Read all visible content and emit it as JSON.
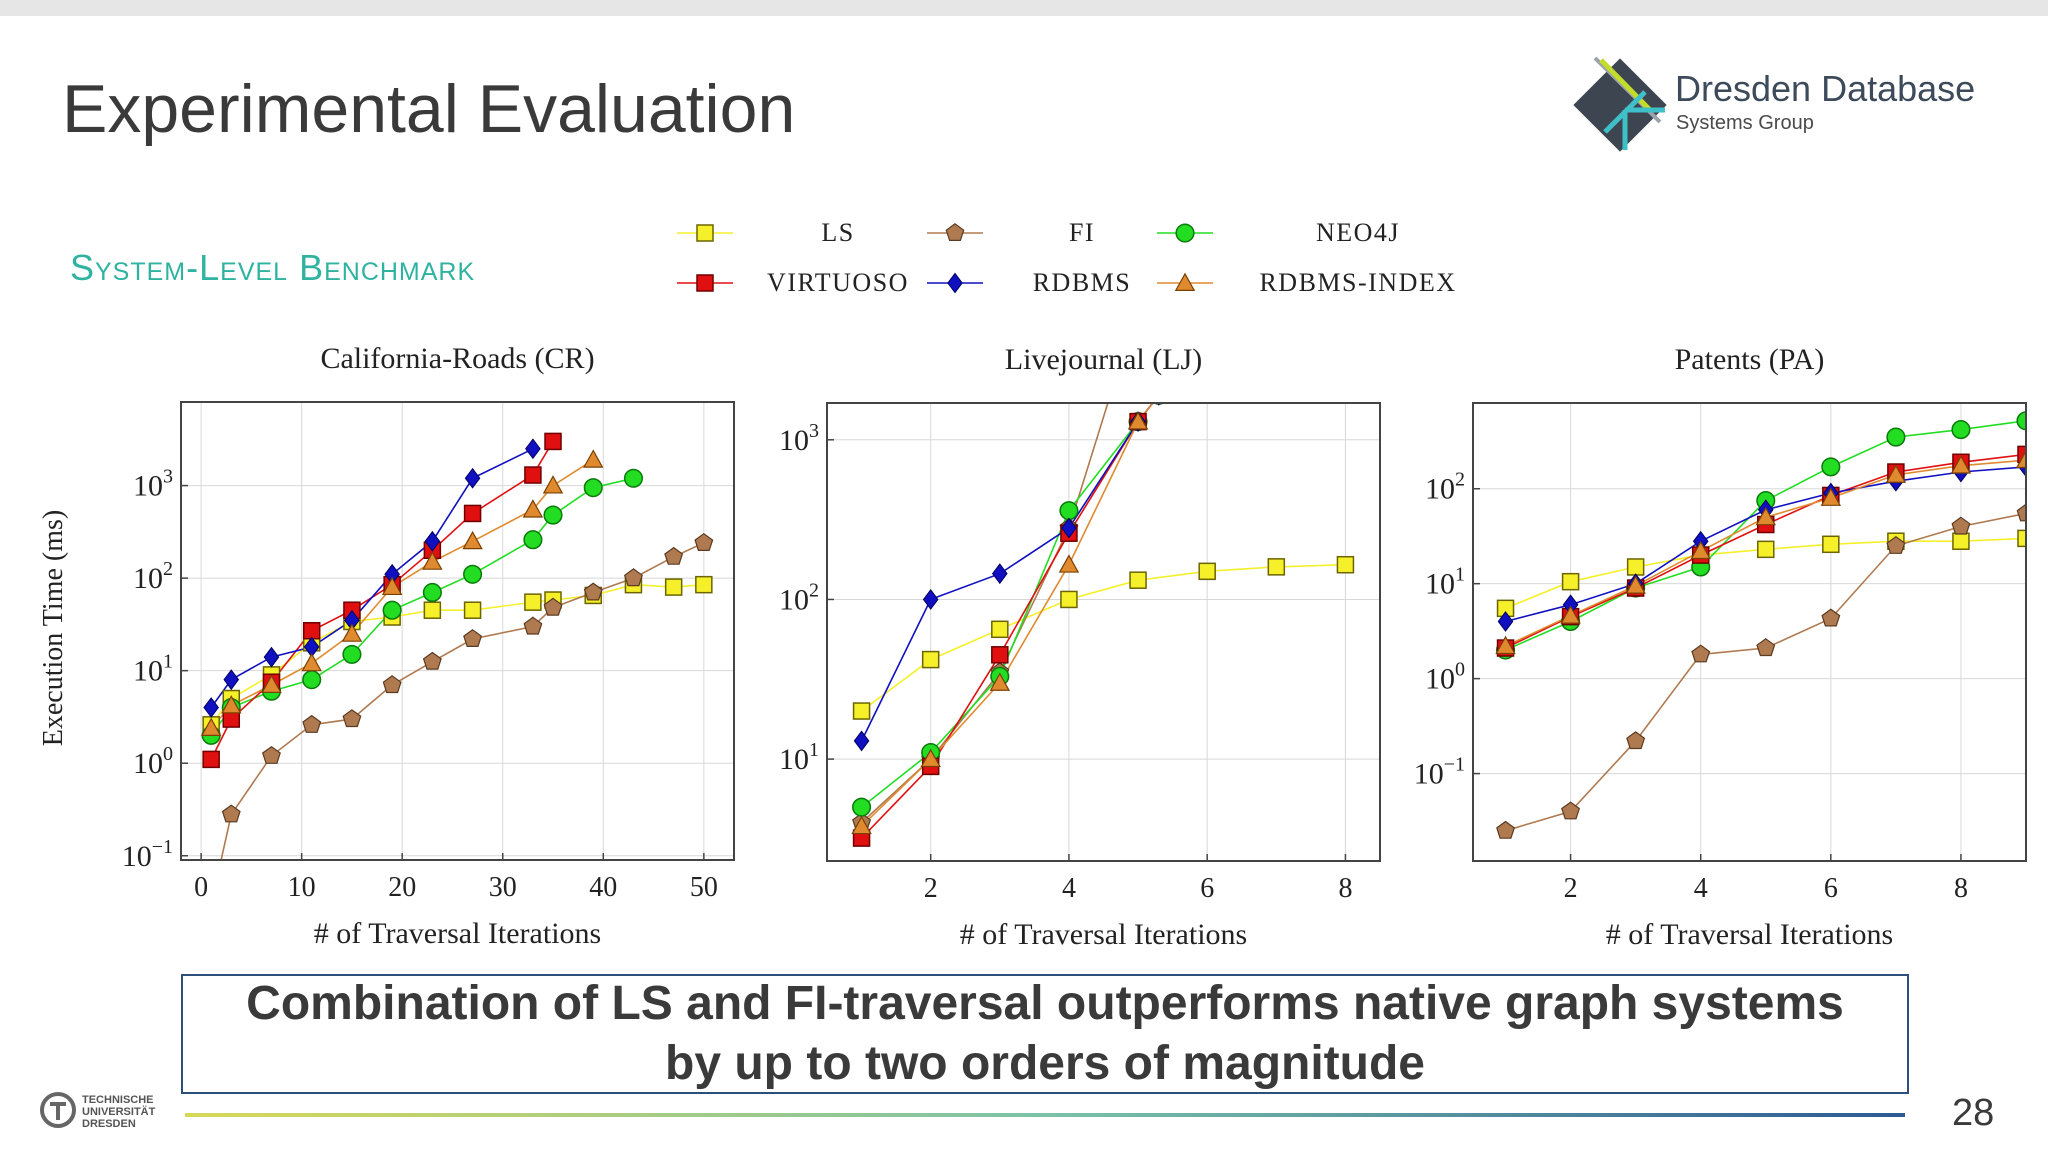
{
  "slide": {
    "title": "Experimental Evaluation",
    "subtitle": "System-Level Benchmark",
    "logo_main": "Dresden Database",
    "logo_sub": "Systems Group",
    "conclusion_line1": "Combination of LS and FI-traversal outperforms native graph systems",
    "conclusion_line2": "by up to two orders of magnitude",
    "page_number": "28",
    "university_line1": "TECHNISCHE",
    "university_line2": "UNIVERSITÄT",
    "university_line3": "DRESDEN"
  },
  "legend": [
    {
      "key": "ls",
      "label": "LS",
      "marker": "square",
      "color": "#f5f02a",
      "stroke": "#6b6400"
    },
    {
      "key": "fi",
      "label": "FI",
      "marker": "pentagon",
      "color": "#b07a50",
      "stroke": "#5a3a20"
    },
    {
      "key": "neo4j",
      "label": "NEO4J",
      "marker": "circle",
      "color": "#22dd22",
      "stroke": "#0a7a0a"
    },
    {
      "key": "virtuoso",
      "label": "VIRTUOSO",
      "marker": "square",
      "color": "#e01010",
      "stroke": "#700000"
    },
    {
      "key": "rdbms",
      "label": "RDBMS",
      "marker": "diamond",
      "color": "#1010c0",
      "stroke": "#000060"
    },
    {
      "key": "rdbms_index",
      "label": "RDBMS-INDEX",
      "marker": "triangle",
      "color": "#e08a30",
      "stroke": "#7a4000"
    }
  ],
  "chart_data": [
    {
      "type": "line",
      "title": "California-Roads (CR)",
      "xlabel": "# of Traversal Iterations",
      "ylabel": "Execution Time (ms)",
      "xlim": [
        -2,
        53
      ],
      "ylim": [
        0.09,
        8000
      ],
      "yscale": "log",
      "xticks": [
        0,
        10,
        20,
        30,
        40,
        50
      ],
      "yticks": [
        0.1,
        1,
        10,
        100,
        1000
      ],
      "ytick_exponents": [
        "−1",
        "0",
        "1",
        "2",
        "3"
      ],
      "grid": true,
      "series": [
        {
          "key": "ls",
          "x": [
            1,
            3,
            7,
            11,
            15,
            19,
            23,
            27,
            33,
            35,
            39,
            43,
            47,
            50
          ],
          "y": [
            2.6,
            5,
            9,
            20,
            34,
            38,
            45,
            45,
            55,
            58,
            65,
            85,
            80,
            85
          ]
        },
        {
          "key": "fi",
          "x": [
            1,
            3,
            7,
            11,
            15,
            19,
            23,
            27,
            33,
            35,
            39,
            43,
            47,
            50
          ],
          "y": [
            0.03,
            0.28,
            1.2,
            2.6,
            3.0,
            7.0,
            12.5,
            22,
            30,
            48,
            70,
            100,
            170,
            240
          ]
        },
        {
          "key": "neo4j",
          "x": [
            1,
            3,
            7,
            11,
            15,
            19,
            23,
            27,
            33,
            35,
            39,
            43
          ],
          "y": [
            2.0,
            4.0,
            6.0,
            8.0,
            15,
            45,
            70,
            110,
            260,
            480,
            950,
            1200
          ]
        },
        {
          "key": "virtuoso",
          "x": [
            1,
            3,
            7,
            11,
            15,
            19,
            23,
            27,
            33,
            35
          ],
          "y": [
            1.1,
            3.0,
            7.5,
            27,
            45,
            85,
            200,
            500,
            1300,
            3000
          ]
        },
        {
          "key": "rdbms",
          "x": [
            1,
            3,
            7,
            11,
            15,
            19,
            23,
            27,
            33
          ],
          "y": [
            4,
            8,
            14,
            18,
            35,
            110,
            250,
            1200,
            2500
          ]
        },
        {
          "key": "rdbms_index",
          "x": [
            1,
            3,
            7,
            11,
            15,
            19,
            23,
            27,
            33,
            35,
            39
          ],
          "y": [
            2.4,
            4.2,
            7,
            12,
            25,
            80,
            150,
            250,
            550,
            1000,
            1900
          ]
        }
      ]
    },
    {
      "type": "line",
      "title": "Livejournal (LJ)",
      "xlabel": "# of Traversal Iterations",
      "ylabel": "",
      "xlim": [
        0.5,
        8.5
      ],
      "ylim": [
        2.3,
        1700
      ],
      "yscale": "log",
      "xticks": [
        2,
        4,
        6,
        8
      ],
      "yticks": [
        10,
        100,
        1000
      ],
      "ytick_exponents": [
        "1",
        "2",
        "3"
      ],
      "grid": true,
      "series": [
        {
          "key": "ls",
          "x": [
            1,
            2,
            3,
            4,
            5,
            6,
            7,
            8
          ],
          "y": [
            20,
            42,
            65,
            100,
            132,
            150,
            160,
            165
          ]
        },
        {
          "key": "fi",
          "x": [
            1,
            2,
            3,
            4,
            4.9
          ],
          "y": [
            4,
            10,
            35,
            280,
            5000
          ]
        },
        {
          "key": "neo4j",
          "x": [
            1,
            2,
            3,
            4,
            5,
            5.3
          ],
          "y": [
            5,
            11,
            33,
            360,
            1300,
            1900
          ]
        },
        {
          "key": "virtuoso",
          "x": [
            1,
            2,
            3,
            4,
            5,
            5.3
          ],
          "y": [
            3.2,
            9,
            45,
            260,
            1300,
            1900
          ]
        },
        {
          "key": "rdbms",
          "x": [
            1,
            2,
            3,
            4,
            5,
            5.3
          ],
          "y": [
            13,
            100,
            145,
            280,
            1300,
            1900
          ]
        },
        {
          "key": "rdbms_index",
          "x": [
            1,
            2,
            3,
            4,
            5,
            5.3
          ],
          "y": [
            3.8,
            10,
            30,
            165,
            1300,
            1900
          ]
        }
      ]
    },
    {
      "type": "line",
      "title": "Patents (PA)",
      "xlabel": "# of Traversal Iterations",
      "ylabel": "",
      "xlim": [
        0.5,
        9
      ],
      "ylim": [
        0.012,
        800
      ],
      "yscale": "log",
      "xticks": [
        2,
        4,
        6,
        8
      ],
      "yticks": [
        0.1,
        1,
        10,
        100
      ],
      "ytick_exponents": [
        "−1",
        "0",
        "1",
        "2"
      ],
      "grid": true,
      "series": [
        {
          "key": "ls",
          "x": [
            1,
            2,
            3,
            4,
            5,
            6,
            7,
            8,
            9
          ],
          "y": [
            5.5,
            10.5,
            15,
            20,
            23,
            26,
            28,
            28,
            30
          ]
        },
        {
          "key": "fi",
          "x": [
            1,
            2,
            3,
            4,
            5,
            6,
            7,
            8,
            9
          ],
          "y": [
            0.025,
            0.04,
            0.22,
            1.8,
            2.1,
            4.3,
            25,
            40,
            55
          ]
        },
        {
          "key": "neo4j",
          "x": [
            1,
            2,
            3,
            4,
            5,
            6,
            7,
            8,
            9
          ],
          "y": [
            2,
            4,
            9,
            15,
            75,
            170,
            350,
            420,
            520
          ]
        },
        {
          "key": "virtuoso",
          "x": [
            1,
            2,
            3,
            4,
            5,
            6,
            7,
            8,
            9
          ],
          "y": [
            2.1,
            4.5,
            9,
            20,
            42,
            85,
            150,
            190,
            230
          ]
        },
        {
          "key": "rdbms",
          "x": [
            1,
            2,
            3,
            4,
            5,
            6,
            7,
            8,
            9
          ],
          "y": [
            4,
            6,
            10,
            28,
            60,
            90,
            120,
            150,
            170
          ]
        },
        {
          "key": "rdbms_index",
          "x": [
            1,
            2,
            3,
            4,
            5,
            6,
            7,
            8,
            9
          ],
          "y": [
            2.2,
            4.6,
            9.5,
            22,
            50,
            80,
            140,
            175,
            200
          ]
        }
      ]
    }
  ]
}
